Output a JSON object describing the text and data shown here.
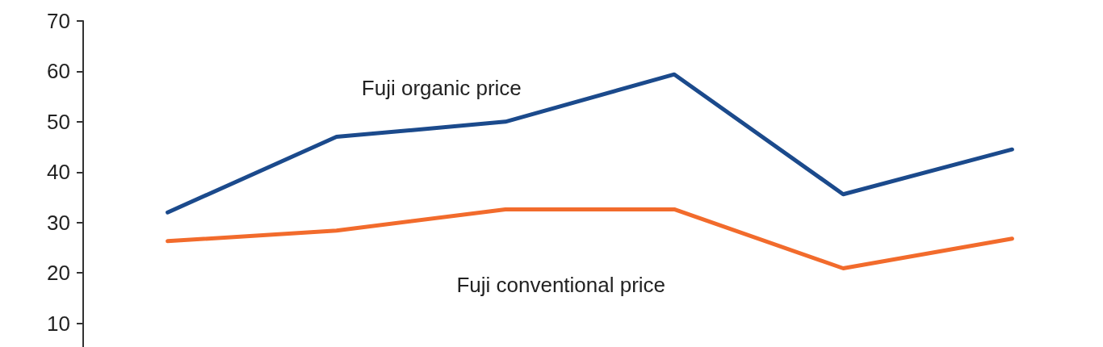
{
  "chart_data": {
    "type": "line",
    "categories": [
      null,
      null,
      null,
      null,
      null,
      null
    ],
    "series": [
      {
        "name": "Fuji organic price",
        "color": "#1b4a8c",
        "values": [
          32,
          47,
          50,
          59.4,
          35.6,
          44.5
        ]
      },
      {
        "name": "Fuji conventional price",
        "color": "#f26b2c",
        "values": [
          26.3,
          28.4,
          32.6,
          32.6,
          20.9,
          26.8
        ]
      }
    ],
    "ylim": [
      4,
      70
    ],
    "yticks": [
      10,
      20,
      30,
      40,
      50,
      60,
      70
    ],
    "grid": false,
    "legend": false,
    "marker": "none",
    "line_style": "solid",
    "tick_labels": "y"
  }
}
